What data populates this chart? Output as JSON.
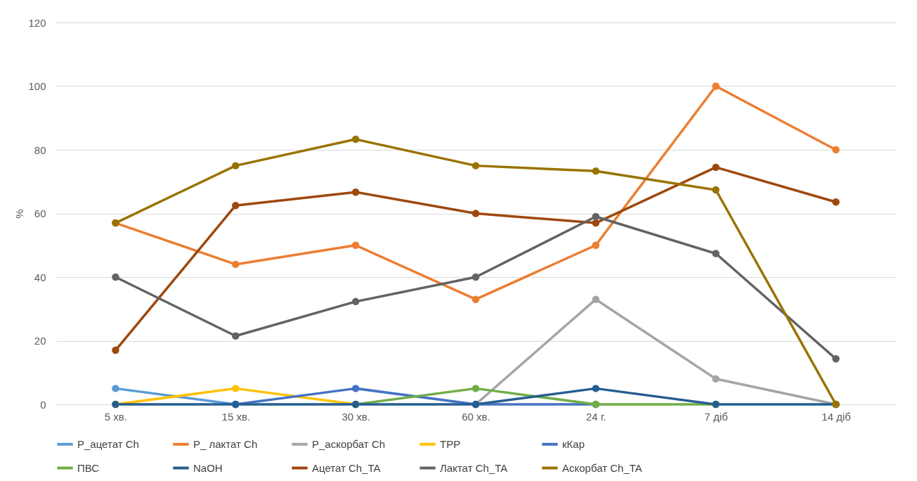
{
  "chart_data": {
    "type": "line",
    "ylabel": "%",
    "categories": [
      "5 хв.",
      "15 хв.",
      "30 хв.",
      "60 хв.",
      "24 г.",
      "7 діб",
      "14 діб"
    ],
    "ylim": [
      0,
      120
    ],
    "yticks": [
      0,
      20,
      40,
      60,
      80,
      100,
      120
    ],
    "grid": "y",
    "legend": "bottom",
    "marker": "circle",
    "line_style": "solid",
    "series": [
      {
        "name": "P_ацетат Ch",
        "color": "#5b9bd5",
        "values": [
          5,
          0,
          null,
          null,
          null,
          null,
          null
        ]
      },
      {
        "name": "P_ лактат Ch",
        "color": "#ed7d31",
        "values": [
          57,
          44,
          50,
          33,
          50,
          100,
          80
        ]
      },
      {
        "name": "P_аскорбат Ch",
        "color": "#a5a5a5",
        "values": [
          null,
          null,
          null,
          0,
          33,
          8,
          0
        ]
      },
      {
        "name": "TPP",
        "color": "#ffc000",
        "values": [
          0,
          5,
          0,
          null,
          null,
          null,
          null
        ]
      },
      {
        "name": "кКар",
        "color": "#4472c4",
        "values": [
          null,
          0,
          5,
          0,
          0,
          null,
          null
        ]
      },
      {
        "name": "ПВС",
        "color": "#70ad47",
        "values": [
          null,
          null,
          0,
          5,
          0,
          0,
          null
        ]
      },
      {
        "name": "NaOH",
        "color": "#255e91",
        "values": [
          0,
          0,
          0,
          0,
          5,
          0,
          0
        ]
      },
      {
        "name": "Ацетат Ch_TA",
        "color": "#9e480e",
        "values": [
          17,
          62.5,
          66.7,
          60,
          57,
          74.5,
          63.6
        ]
      },
      {
        "name": "Лактат Ch_TA",
        "color": "#636363",
        "values": [
          40,
          21.5,
          32.3,
          40,
          59,
          47.4,
          14.3
        ]
      },
      {
        "name": "Аскорбат Ch_TA",
        "color": "#997300",
        "values": [
          57,
          75,
          83.3,
          75,
          73.3,
          67.4,
          0
        ]
      }
    ]
  }
}
